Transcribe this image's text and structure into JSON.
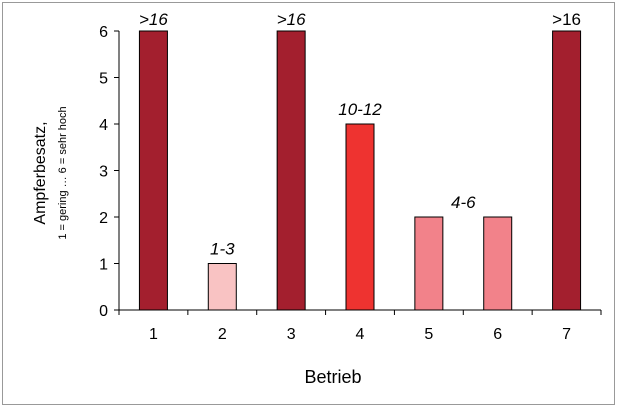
{
  "chart_data": {
    "type": "bar",
    "title": "",
    "xlabel": "Betrieb",
    "ylabel": "Ampferbesatz,",
    "ylabel_sub": "1 = gering … 6 = sehr hoch",
    "categories": [
      "1",
      "2",
      "3",
      "4",
      "5",
      "6",
      "7"
    ],
    "values": [
      6,
      1,
      6,
      4,
      2,
      2,
      6
    ],
    "ylim": [
      0,
      6
    ],
    "yticks": [
      "0",
      "1",
      "2",
      "3",
      "4",
      "5",
      "6"
    ],
    "grid": false,
    "legend": "none",
    "bar_colors": [
      "#A31F2E",
      "#F9C3C3",
      "#A31F2E",
      "#EE3330",
      "#F2828A",
      "#F2828A",
      "#A31F2E"
    ],
    "annotations": [
      {
        "text": ">16",
        "category": "1",
        "italic": true
      },
      {
        "text": "1-3",
        "category": "2",
        "italic": true
      },
      {
        "text": ">16",
        "category": "3",
        "italic": true
      },
      {
        "text": "10-12",
        "category": "4",
        "italic": true
      },
      {
        "text": "4-6",
        "between": [
          "5",
          "6"
        ],
        "italic": true
      },
      {
        "text": ">16",
        "category": "7",
        "italic": false
      }
    ]
  }
}
